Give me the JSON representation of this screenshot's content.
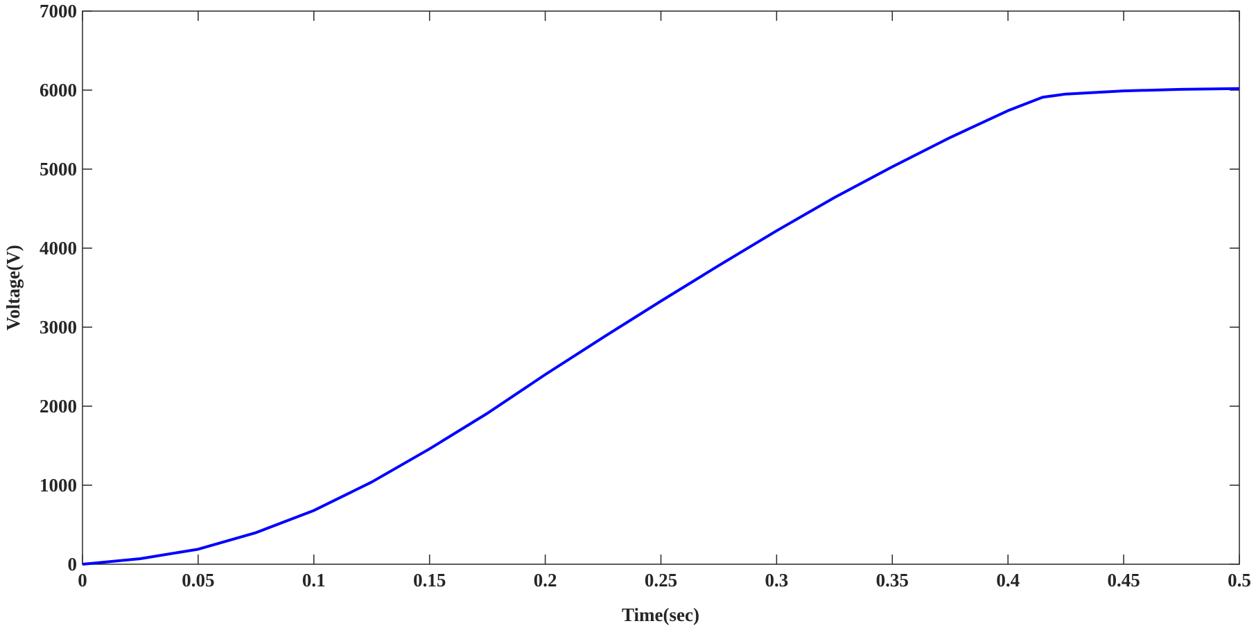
{
  "chart_data": {
    "type": "line",
    "x_label": "Time(sec)",
    "y_label": "Voltage(V)",
    "x": [
      0,
      0.025,
      0.05,
      0.075,
      0.1,
      0.125,
      0.15,
      0.175,
      0.2,
      0.225,
      0.25,
      0.275,
      0.3,
      0.325,
      0.35,
      0.375,
      0.4,
      0.415,
      0.425,
      0.45,
      0.475,
      0.5
    ],
    "series": [
      {
        "color": "#0000ff",
        "values": [
          0,
          70,
          190,
          400,
          680,
          1040,
          1460,
          1910,
          2400,
          2870,
          3330,
          3780,
          4220,
          4640,
          5030,
          5400,
          5740,
          5910,
          5950,
          5990,
          6010,
          6020
        ]
      }
    ],
    "xlim": [
      0,
      0.5
    ],
    "xticks": [
      0,
      0.05,
      0.1,
      0.15,
      0.2,
      0.25,
      0.3,
      0.35,
      0.4,
      0.45,
      0.5
    ],
    "ylim": [
      0,
      7000
    ],
    "yticks": [
      0,
      1000,
      2000,
      3000,
      4000,
      5000,
      6000,
      7000
    ]
  }
}
